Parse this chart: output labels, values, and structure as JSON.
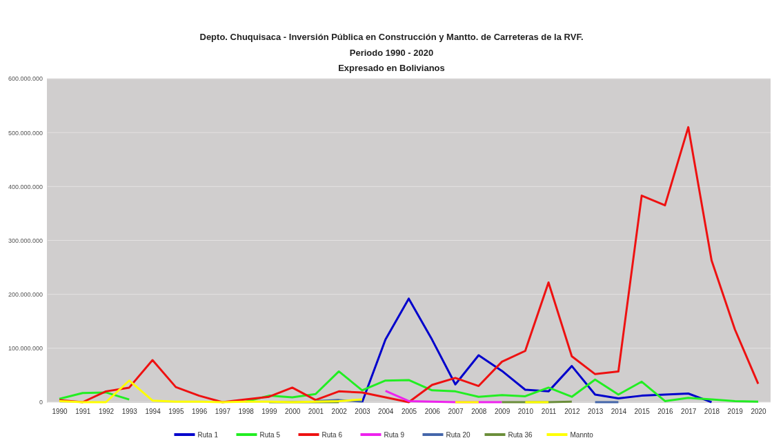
{
  "chart_data": {
    "type": "line",
    "title": "Depto. Chuquisaca - Inversión Pública en Construcción y Mantto. de Carreteras de la RVF.",
    "subtitle": [
      "Periodo 1990 - 2020",
      "Expresado en Bolivianos"
    ],
    "categories": [
      "1990",
      "1991",
      "1992",
      "1993",
      "1994",
      "1995",
      "1996",
      "1997",
      "1998",
      "1999",
      "2000",
      "2001",
      "2002",
      "2003",
      "2004",
      "2005",
      "2006",
      "2007",
      "2008",
      "2009",
      "2010",
      "2011",
      "2012",
      "2013",
      "2014",
      "2015",
      "2016",
      "2017",
      "2018",
      "2019",
      "2020"
    ],
    "ylim": [
      0,
      600000000
    ],
    "yticks": [
      0,
      {
        "value": 100000000,
        "label": "100.000.000"
      },
      {
        "value": 200000000,
        "label": "200.000.000"
      },
      {
        "value": 300000000,
        "label": "300.000.000"
      },
      {
        "value": 400000000,
        "label": "400.000.000"
      },
      {
        "value": 500000000,
        "label": "500.000.000"
      },
      {
        "value": 600000000,
        "label": "600.000.000"
      }
    ],
    "grid": "y",
    "legend": "bottom",
    "marker": "none",
    "line_style": "solid",
    "series": [
      {
        "name": "Ruta 1",
        "color": "#0000cc",
        "values": [
          null,
          null,
          null,
          null,
          null,
          null,
          null,
          null,
          null,
          null,
          null,
          null,
          null,
          0,
          116000000,
          192000000,
          116000000,
          33000000,
          87000000,
          58000000,
          23000000,
          20000000,
          67000000,
          14000000,
          7000000,
          12000000,
          14000000,
          16000000,
          0,
          null,
          null
        ]
      },
      {
        "name": "Ruta 5",
        "color": "#22ee22",
        "values": [
          6000000,
          17000000,
          18000000,
          5000000,
          null,
          null,
          null,
          null,
          1000000,
          12000000,
          9000000,
          15000000,
          57000000,
          22000000,
          40000000,
          41000000,
          22000000,
          20000000,
          10000000,
          13000000,
          11000000,
          27000000,
          10000000,
          42000000,
          14000000,
          38000000,
          2000000,
          8000000,
          5000000,
          2000000,
          1000000
        ]
      },
      {
        "name": "Ruta 6",
        "color": "#ee1111",
        "values": [
          4000000,
          0,
          20000000,
          27000000,
          78000000,
          28000000,
          12000000,
          0,
          5000000,
          10000000,
          27000000,
          4000000,
          20000000,
          18000000,
          9000000,
          0,
          32000000,
          45000000,
          30000000,
          75000000,
          95000000,
          222000000,
          85000000,
          52000000,
          57000000,
          383000000,
          365000000,
          510000000,
          263000000,
          135000000,
          34000000
        ]
      },
      {
        "name": "Ruta 9",
        "color": "#ee22ee",
        "values": [
          null,
          null,
          null,
          null,
          null,
          null,
          null,
          null,
          null,
          null,
          null,
          null,
          null,
          null,
          21000000,
          2000000,
          1000000,
          0,
          0,
          0,
          null,
          null,
          null,
          null,
          null,
          null,
          null,
          null,
          null,
          null,
          null
        ]
      },
      {
        "name": "Ruta 20",
        "color": "#4466aa",
        "values": [
          null,
          null,
          null,
          null,
          null,
          null,
          null,
          null,
          null,
          null,
          null,
          2000000,
          4000000,
          1000000,
          null,
          null,
          null,
          null,
          null,
          null,
          null,
          null,
          null,
          0,
          0,
          null,
          null,
          null,
          null,
          null,
          null
        ]
      },
      {
        "name": "Ruta 36",
        "color": "#6b8e3a",
        "values": [
          null,
          null,
          null,
          null,
          null,
          null,
          null,
          null,
          null,
          0,
          0,
          0,
          0,
          null,
          null,
          null,
          null,
          null,
          null,
          0,
          0,
          0,
          1000000,
          null,
          null,
          null,
          null,
          null,
          null,
          null,
          null
        ]
      },
      {
        "name": "Mannto",
        "color": "#ffff00",
        "values": [
          2000000,
          0,
          0,
          40000000,
          3000000,
          1000000,
          1000000,
          0,
          1000000,
          1000000,
          0,
          1000000,
          2000000,
          5000000,
          null,
          null,
          null,
          0,
          0,
          null,
          0,
          0,
          null,
          null,
          null,
          null,
          null,
          null,
          null,
          null,
          null
        ]
      }
    ]
  }
}
